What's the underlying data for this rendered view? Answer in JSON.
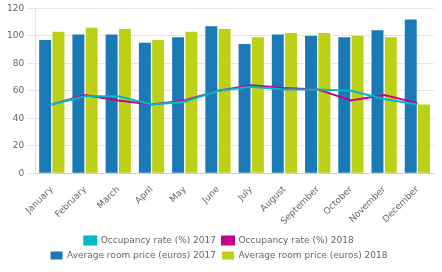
{
  "chart_data": {
    "type": "bar",
    "categories": [
      "January",
      "February",
      "March",
      "April",
      "May",
      "June",
      "July",
      "August",
      "September",
      "October",
      "November",
      "December"
    ],
    "series": [
      {
        "name": "Average room price (euros) 2017",
        "type": "bar",
        "color": "#1a7ab5",
        "values": [
          97,
          101,
          101,
          95,
          99,
          107,
          94,
          101,
          100,
          99,
          104,
          112
        ]
      },
      {
        "name": "Average room price (euros) 2018",
        "type": "bar",
        "color": "#bcd115",
        "values": [
          103,
          106,
          105,
          97,
          103,
          105,
          99,
          102,
          102,
          100,
          99,
          50
        ]
      },
      {
        "name": "Occupancy rate (%) 2017",
        "type": "line",
        "color": "#00b8c8",
        "values": [
          50,
          56,
          56,
          50,
          52,
          60,
          63,
          61,
          61,
          60,
          54,
          50
        ]
      },
      {
        "name": "Occupancy rate (%) 2018",
        "type": "line",
        "color": "#c8008c",
        "values": [
          50,
          57,
          53,
          50,
          53,
          60,
          64,
          62,
          61,
          53,
          57,
          51
        ]
      }
    ],
    "ylim": [
      0,
      120
    ],
    "yticks": [
      0,
      20,
      40,
      60,
      80,
      100,
      120
    ],
    "grid": true,
    "legend": "bottom"
  }
}
